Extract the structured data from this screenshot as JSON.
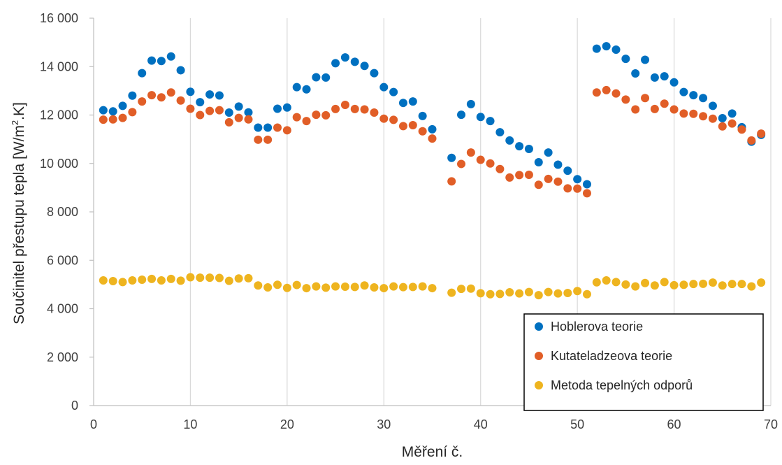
{
  "chart_data": {
    "type": "scatter",
    "title": "",
    "xlabel": "Měření č.",
    "ylabel_main": "Součinitel přestupu tepla [W/m",
    "ylabel_sup": "2",
    "ylabel_tail": ".K]",
    "xlim": [
      0,
      70
    ],
    "ylim": [
      0,
      16000
    ],
    "x_ticks": [
      0,
      10,
      20,
      30,
      40,
      50,
      60,
      70
    ],
    "x_tick_labels": [
      "0",
      "10",
      "20",
      "30",
      "40",
      "50",
      "60",
      "70"
    ],
    "y_ticks": [
      0,
      2000,
      4000,
      6000,
      8000,
      10000,
      12000,
      14000,
      16000
    ],
    "y_tick_labels": [
      "0",
      "2 000",
      "4 000",
      "6 000",
      "8 000",
      "10 000",
      "12 000",
      "14 000",
      "16 000"
    ],
    "grid": "vertical",
    "legend_position": "bottom-right",
    "series": [
      {
        "name": "Hoblerova teorie",
        "color": "#0070C0",
        "x": [
          1,
          2,
          3,
          4,
          5,
          6,
          7,
          8,
          9,
          10,
          11,
          12,
          13,
          14,
          15,
          16,
          17,
          18,
          19,
          20,
          21,
          22,
          23,
          24,
          25,
          26,
          27,
          28,
          29,
          30,
          31,
          32,
          33,
          34,
          35,
          37,
          38,
          39,
          40,
          41,
          42,
          43,
          44,
          45,
          46,
          47,
          48,
          49,
          50,
          51,
          52,
          53,
          54,
          55,
          56,
          57,
          58,
          59,
          60,
          61,
          62,
          63,
          64,
          65,
          66,
          67,
          68,
          69
        ],
        "y": [
          12200,
          12150,
          12380,
          12800,
          13730,
          14250,
          14230,
          14420,
          13850,
          12960,
          12530,
          12850,
          12810,
          12100,
          12350,
          12110,
          11480,
          11480,
          12260,
          12310,
          13150,
          13060,
          13560,
          13550,
          14140,
          14380,
          14200,
          14030,
          13730,
          13150,
          12950,
          12500,
          12560,
          11960,
          11410,
          10230,
          12010,
          12450,
          11920,
          11750,
          11290,
          10950,
          10710,
          10600,
          10050,
          10450,
          9950,
          9700,
          9350,
          9140,
          14740,
          14840,
          14700,
          14320,
          13720,
          14280,
          13550,
          13600,
          13350,
          12950,
          12820,
          12700,
          12380,
          11870,
          12060,
          11500,
          10900,
          11180
        ]
      },
      {
        "name": "Kutateladzeova teorie",
        "color": "#E15E27",
        "x": [
          1,
          2,
          3,
          4,
          5,
          6,
          7,
          8,
          9,
          10,
          11,
          12,
          13,
          14,
          15,
          16,
          17,
          18,
          19,
          20,
          21,
          22,
          23,
          24,
          25,
          26,
          27,
          28,
          29,
          30,
          31,
          32,
          33,
          34,
          35,
          37,
          38,
          39,
          40,
          41,
          42,
          43,
          44,
          45,
          46,
          47,
          48,
          49,
          50,
          51,
          52,
          53,
          54,
          55,
          56,
          57,
          58,
          59,
          60,
          61,
          62,
          63,
          64,
          65,
          66,
          67,
          68,
          69
        ],
        "y": [
          11810,
          11820,
          11880,
          12120,
          12560,
          12820,
          12730,
          12930,
          12600,
          12260,
          12000,
          12170,
          12200,
          11700,
          11880,
          11820,
          10980,
          10980,
          11480,
          11370,
          11910,
          11750,
          12010,
          11990,
          12250,
          12420,
          12250,
          12230,
          12100,
          11850,
          11800,
          11540,
          11580,
          11330,
          11030,
          9260,
          9980,
          10450,
          10150,
          10000,
          9770,
          9420,
          9520,
          9530,
          9120,
          9360,
          9250,
          8970,
          8960,
          8770,
          12930,
          13030,
          12890,
          12640,
          12230,
          12700,
          12250,
          12470,
          12230,
          12060,
          12050,
          11950,
          11850,
          11530,
          11650,
          11400,
          10950,
          11230
        ]
      },
      {
        "name": "Metoda tepelných odporů",
        "color": "#EEB41F",
        "x": [
          1,
          2,
          3,
          4,
          5,
          6,
          7,
          8,
          9,
          10,
          11,
          12,
          13,
          14,
          15,
          16,
          17,
          18,
          19,
          20,
          21,
          22,
          23,
          24,
          25,
          26,
          27,
          28,
          29,
          30,
          31,
          32,
          33,
          34,
          35,
          37,
          38,
          39,
          40,
          41,
          42,
          43,
          44,
          45,
          46,
          47,
          48,
          49,
          50,
          51,
          52,
          53,
          54,
          55,
          56,
          57,
          58,
          59,
          60,
          61,
          62,
          63,
          64,
          65,
          66,
          67,
          68,
          69
        ],
        "y": [
          5170,
          5140,
          5100,
          5170,
          5200,
          5230,
          5170,
          5230,
          5160,
          5300,
          5280,
          5280,
          5270,
          5150,
          5250,
          5260,
          4960,
          4880,
          4990,
          4860,
          4980,
          4850,
          4920,
          4870,
          4920,
          4910,
          4900,
          4960,
          4880,
          4850,
          4920,
          4890,
          4900,
          4920,
          4850,
          4660,
          4820,
          4830,
          4640,
          4600,
          4610,
          4680,
          4630,
          4690,
          4560,
          4690,
          4630,
          4650,
          4730,
          4600,
          5090,
          5170,
          5100,
          5000,
          4920,
          5060,
          4960,
          5100,
          4970,
          4990,
          5020,
          5030,
          5080,
          4960,
          5020,
          5020,
          4920,
          5080
        ]
      }
    ]
  }
}
